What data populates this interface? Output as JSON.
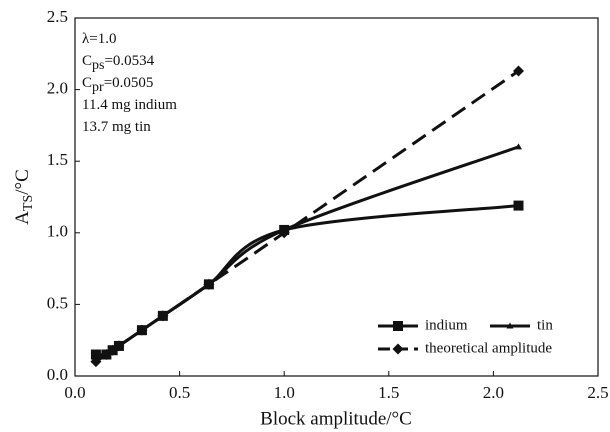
{
  "chart_data": {
    "type": "line",
    "xlabel": "Block amplitude/°C",
    "ylabel": {
      "main": "A",
      "sub": "TS",
      "rest": "/°C"
    },
    "annotations": [
      {
        "main": "λ=1.0"
      },
      {
        "main": "C",
        "sub": "ps",
        "rest": "=0.0534"
      },
      {
        "main": "C",
        "sub": "pr",
        "rest": "=0.0505"
      },
      {
        "main": "11.4 mg indium"
      },
      {
        "main": "13.7 mg tin"
      }
    ],
    "xlim": [
      0,
      2.5
    ],
    "xticks": [
      {
        "value": 0,
        "label": "0.0"
      },
      0.5,
      {
        "value": 1,
        "label": "1.0"
      },
      1.5,
      {
        "value": 2,
        "label": "2.0"
      },
      2.5
    ],
    "ylim": [
      0,
      2.5
    ],
    "yticks": [
      {
        "value": 0,
        "label": "0.0"
      },
      0.5,
      {
        "value": 1,
        "label": "1.0"
      },
      1.5,
      {
        "value": 2,
        "label": "2.0"
      },
      2.5
    ],
    "legend": "lower right",
    "series": [
      {
        "name": "indium",
        "color": "#111111",
        "marker": "square",
        "dashed": false,
        "x": [
          0.1,
          0.15,
          0.18,
          0.21,
          0.32,
          0.42,
          0.64,
          1.0,
          2.12
        ],
        "values": [
          0.15,
          0.15,
          0.18,
          0.21,
          0.32,
          0.42,
          0.64,
          1.02,
          1.19
        ]
      },
      {
        "name": "tin",
        "color": "#111111",
        "marker": "triangle",
        "dashed": false,
        "x": [
          0.1,
          0.15,
          0.18,
          0.21,
          0.32,
          0.42,
          0.64,
          1.0,
          2.12
        ],
        "values": [
          0.13,
          0.15,
          0.18,
          0.21,
          0.32,
          0.42,
          0.64,
          1.02,
          1.6
        ]
      },
      {
        "name": "theoretical amplitude",
        "color": "#111111",
        "marker": "diamond",
        "dashed": true,
        "x": [
          0.1,
          0.15,
          0.18,
          0.21,
          0.32,
          0.42,
          0.64,
          1.0,
          2.12
        ],
        "values": [
          0.1,
          0.15,
          0.18,
          0.21,
          0.32,
          0.42,
          0.64,
          1.0,
          2.13
        ]
      }
    ]
  }
}
